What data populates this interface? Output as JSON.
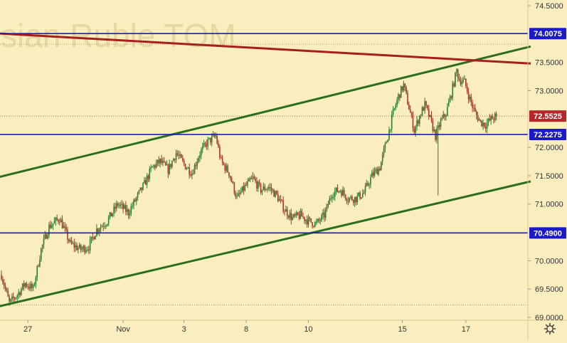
{
  "chart_data": {
    "type": "candlestick",
    "watermark": "ssian Ruble TOM",
    "colors": {
      "background": "#fbeebe",
      "up_candle": "#2e7d32",
      "down_candle": "#a13a2a",
      "horizontal_level": "#1a1acc",
      "channel_line": "#2a6e1e",
      "resistance_line": "#a51f1f",
      "last_price_badge": "#b8252a",
      "level_badge": "#1a1acc",
      "axis_text": "#333333",
      "watermark": "#e7d7a0"
    },
    "y_axis": {
      "range": [
        68.95,
        74.6
      ],
      "ticks": [
        "74.5000",
        "73.5000",
        "73.0000",
        "72.0000",
        "71.5000",
        "71.0000",
        "70.0000",
        "69.5000",
        "69.0000"
      ]
    },
    "x_axis": {
      "ticks": [
        "27",
        "Nov",
        "3",
        "8",
        "10",
        "15",
        "17"
      ]
    },
    "horizontal_levels": [
      {
        "value": 74.0075,
        "label": "74.0075"
      },
      {
        "value": 72.2275,
        "label": "72.2275"
      },
      {
        "value": 70.49,
        "label": "70.4900"
      }
    ],
    "last_price": {
      "value": 72.5525,
      "label": "72.5525"
    },
    "trend_lines": [
      {
        "name": "channel-upper",
        "from": {
          "bar": -10,
          "price": 71.43
        },
        "to": {
          "bar": 400,
          "price": 73.78
        }
      },
      {
        "name": "channel-lower",
        "from": {
          "bar": -10,
          "price": 69.15
        },
        "to": {
          "bar": 400,
          "price": 71.4
        }
      },
      {
        "name": "resistance",
        "from": {
          "bar": -10,
          "price": 74.02
        },
        "to": {
          "bar": 400,
          "price": 73.48
        }
      }
    ],
    "price_path": [
      [
        0,
        69.75
      ],
      [
        6,
        69.25
      ],
      [
        12,
        69.4
      ],
      [
        18,
        69.6
      ],
      [
        24,
        69.5
      ],
      [
        30,
        70.2
      ],
      [
        36,
        70.6
      ],
      [
        44,
        70.75
      ],
      [
        52,
        70.3
      ],
      [
        60,
        70.2
      ],
      [
        66,
        70.25
      ],
      [
        72,
        70.55
      ],
      [
        80,
        70.7
      ],
      [
        88,
        71.0
      ],
      [
        96,
        70.85
      ],
      [
        102,
        71.1
      ],
      [
        108,
        71.35
      ],
      [
        114,
        71.65
      ],
      [
        120,
        71.75
      ],
      [
        126,
        71.6
      ],
      [
        132,
        71.9
      ],
      [
        138,
        71.7
      ],
      [
        144,
        71.55
      ],
      [
        150,
        71.9
      ],
      [
        156,
        72.1
      ],
      [
        162,
        72.2
      ],
      [
        166,
        71.75
      ],
      [
        172,
        71.55
      ],
      [
        178,
        71.1
      ],
      [
        184,
        71.3
      ],
      [
        190,
        71.45
      ],
      [
        196,
        71.25
      ],
      [
        202,
        71.3
      ],
      [
        208,
        71.15
      ],
      [
        214,
        70.9
      ],
      [
        220,
        70.75
      ],
      [
        226,
        70.8
      ],
      [
        232,
        70.7
      ],
      [
        238,
        70.65
      ],
      [
        244,
        70.8
      ],
      [
        250,
        71.2
      ],
      [
        256,
        71.25
      ],
      [
        262,
        71.1
      ],
      [
        268,
        71.1
      ],
      [
        274,
        71.2
      ],
      [
        280,
        71.5
      ],
      [
        286,
        71.65
      ],
      [
        292,
        72.2
      ],
      [
        296,
        72.6
      ],
      [
        300,
        72.9
      ],
      [
        304,
        73.1
      ],
      [
        308,
        72.7
      ],
      [
        312,
        72.3
      ],
      [
        316,
        72.55
      ],
      [
        320,
        72.75
      ],
      [
        324,
        72.5
      ],
      [
        328,
        72.2
      ],
      [
        332,
        72.45
      ],
      [
        336,
        72.6
      ],
      [
        340,
        72.95
      ],
      [
        344,
        73.35
      ],
      [
        346,
        73.2
      ],
      [
        350,
        73.15
      ],
      [
        354,
        72.85
      ],
      [
        358,
        72.6
      ],
      [
        362,
        72.45
      ],
      [
        366,
        72.4
      ],
      [
        370,
        72.5
      ],
      [
        374,
        72.55
      ]
    ],
    "spikes": [
      {
        "bar": 330,
        "low": 71.15
      }
    ]
  },
  "settings_icon": "gear-icon"
}
